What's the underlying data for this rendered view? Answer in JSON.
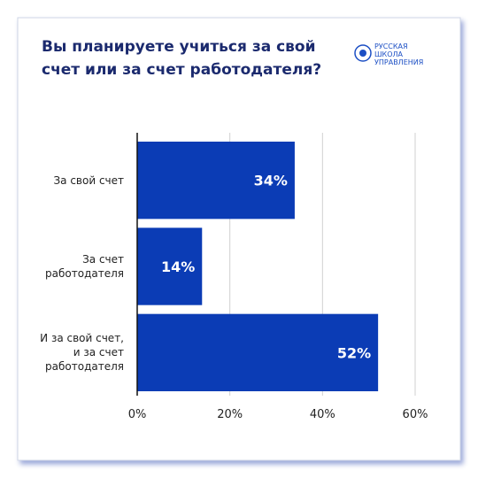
{
  "logo": "РУССКАЯ\nШКОЛА\nУПРАВЛЕНИЯ",
  "chart_data": {
    "type": "hbar",
    "title": "Вы планируете учиться за свой\nсчет или за счет работодателя?",
    "categories": [
      "За свой счет",
      "За счет\nработодателя",
      "И за свой счет,\nи за счет\nработодателя"
    ],
    "values": [
      34,
      14,
      52
    ],
    "value_labels": [
      "34%",
      "14%",
      "52%"
    ],
    "color": "#0b3cb5",
    "xlim": [
      0,
      60
    ],
    "xticks": [
      {
        "value": 0,
        "label": "0%"
      },
      {
        "value": 20,
        "label": "20%"
      },
      {
        "value": 40,
        "label": "40%"
      },
      {
        "value": 60,
        "label": "60%"
      }
    ],
    "grid": true
  }
}
